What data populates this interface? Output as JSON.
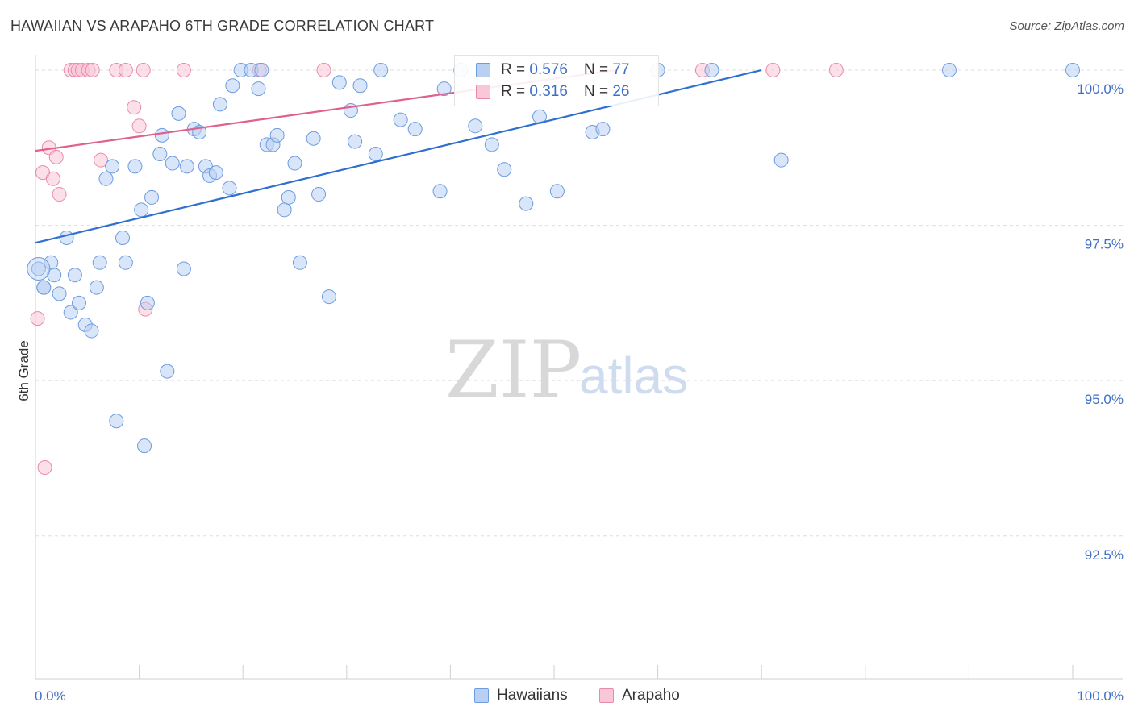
{
  "title": "HAWAIIAN VS ARAPAHO 6TH GRADE CORRELATION CHART",
  "source": "Source: ZipAtlas.com",
  "watermark": {
    "zip": "ZIP",
    "atlas": "atlas"
  },
  "legend": {
    "rows": [
      {
        "r_label": "R =",
        "r_value": "0.576",
        "n_label": "N =",
        "n_value": "77"
      },
      {
        "r_label": "R =",
        "r_value": "0.316",
        "n_label": "N =",
        "n_value": "26"
      }
    ]
  },
  "bottom_legend": {
    "series1": "Hawaiians",
    "series2": "Arapaho"
  },
  "colors": {
    "hawaiians_fill": "#b9d0f2",
    "hawaiians_stroke": "#6d9ce0",
    "hawaiians_line": "#2f6fd0",
    "arapaho_fill": "#f9c7d7",
    "arapaho_stroke": "#e88bab",
    "arapaho_line": "#e0608e",
    "tick_text": "#3f6fc5"
  },
  "chart_data": {
    "type": "scatter",
    "title": "HAWAIIAN VS ARAPAHO 6TH GRADE CORRELATION CHART",
    "xlabel": "",
    "ylabel": "6th Grade",
    "xlim": [
      0,
      100
    ],
    "ylim": [
      90.2,
      100.35
    ],
    "x_tick_labels": {
      "left": "0.0%",
      "right": "100.0%"
    },
    "y_ticks": [
      {
        "value": 100.0,
        "label": "100.0%"
      },
      {
        "value": 97.5,
        "label": "97.5%"
      },
      {
        "value": 95.0,
        "label": "95.0%"
      },
      {
        "value": 92.5,
        "label": "92.5%"
      }
    ],
    "series": [
      {
        "name": "Hawaiians",
        "R": 0.576,
        "N": 77,
        "trend": {
          "x": [
            0,
            70
          ],
          "y": [
            97.22,
            100.0
          ]
        },
        "points": [
          [
            0.3,
            96.8
          ],
          [
            0.8,
            96.5
          ],
          [
            1.5,
            96.9
          ],
          [
            1.8,
            96.7
          ],
          [
            2.3,
            96.4
          ],
          [
            3.0,
            97.3
          ],
          [
            3.4,
            96.1
          ],
          [
            3.8,
            96.7
          ],
          [
            4.2,
            96.25
          ],
          [
            4.8,
            95.9
          ],
          [
            5.4,
            95.8
          ],
          [
            5.9,
            96.5
          ],
          [
            6.2,
            96.9
          ],
          [
            6.8,
            98.25
          ],
          [
            7.4,
            98.45
          ],
          [
            7.8,
            94.35
          ],
          [
            8.4,
            97.3
          ],
          [
            8.7,
            96.9
          ],
          [
            9.6,
            98.45
          ],
          [
            10.2,
            97.75
          ],
          [
            10.5,
            93.95
          ],
          [
            10.8,
            96.25
          ],
          [
            11.2,
            97.95
          ],
          [
            12.0,
            98.65
          ],
          [
            12.2,
            98.95
          ],
          [
            12.7,
            95.15
          ],
          [
            13.2,
            98.5
          ],
          [
            13.8,
            99.3
          ],
          [
            14.3,
            96.8
          ],
          [
            14.6,
            98.45
          ],
          [
            15.3,
            99.05
          ],
          [
            15.8,
            99.0
          ],
          [
            16.4,
            98.45
          ],
          [
            16.8,
            98.3
          ],
          [
            17.4,
            98.35
          ],
          [
            17.8,
            99.45
          ],
          [
            18.7,
            98.1
          ],
          [
            19.0,
            99.75
          ],
          [
            19.8,
            100.0
          ],
          [
            20.8,
            100.0
          ],
          [
            21.5,
            99.7
          ],
          [
            21.8,
            100.0
          ],
          [
            22.3,
            98.8
          ],
          [
            22.9,
            98.8
          ],
          [
            23.3,
            98.95
          ],
          [
            24.0,
            97.75
          ],
          [
            24.4,
            97.95
          ],
          [
            25.0,
            98.5
          ],
          [
            25.5,
            96.9
          ],
          [
            26.8,
            98.9
          ],
          [
            27.3,
            98.0
          ],
          [
            28.3,
            96.35
          ],
          [
            29.3,
            99.8
          ],
          [
            30.4,
            99.35
          ],
          [
            30.8,
            98.85
          ],
          [
            31.3,
            99.75
          ],
          [
            32.8,
            98.65
          ],
          [
            33.3,
            100.0
          ],
          [
            35.2,
            99.2
          ],
          [
            36.6,
            99.05
          ],
          [
            39.0,
            98.05
          ],
          [
            39.4,
            99.7
          ],
          [
            41.0,
            100.0
          ],
          [
            42.4,
            99.1
          ],
          [
            44.0,
            98.8
          ],
          [
            45.2,
            98.4
          ],
          [
            47.3,
            97.85
          ],
          [
            48.6,
            99.25
          ],
          [
            50.3,
            98.05
          ],
          [
            53.7,
            99.0
          ],
          [
            54.7,
            99.05
          ],
          [
            60.0,
            100.0
          ],
          [
            65.2,
            100.0
          ],
          [
            71.9,
            98.55
          ],
          [
            88.1,
            100.0
          ],
          [
            100.0,
            100.0
          ],
          [
            0.8,
            96.5
          ]
        ]
      },
      {
        "name": "Arapaho",
        "R": 0.316,
        "N": 26,
        "trend": {
          "x": [
            0,
            56
          ],
          "y": [
            98.7,
            100.0
          ]
        },
        "points": [
          [
            0.2,
            96.0
          ],
          [
            0.7,
            98.35
          ],
          [
            0.9,
            93.6
          ],
          [
            1.3,
            98.75
          ],
          [
            1.7,
            98.25
          ],
          [
            2.0,
            98.6
          ],
          [
            2.3,
            98.0
          ],
          [
            3.4,
            100.0
          ],
          [
            3.8,
            100.0
          ],
          [
            4.1,
            100.0
          ],
          [
            4.5,
            100.0
          ],
          [
            5.1,
            100.0
          ],
          [
            5.5,
            100.0
          ],
          [
            6.3,
            98.55
          ],
          [
            7.8,
            100.0
          ],
          [
            8.7,
            100.0
          ],
          [
            9.5,
            99.4
          ],
          [
            10.0,
            99.1
          ],
          [
            10.4,
            100.0
          ],
          [
            10.6,
            96.15
          ],
          [
            14.3,
            100.0
          ],
          [
            21.6,
            100.0
          ],
          [
            27.8,
            100.0
          ],
          [
            64.3,
            100.0
          ],
          [
            71.1,
            100.0
          ],
          [
            77.2,
            100.0
          ]
        ]
      }
    ]
  }
}
